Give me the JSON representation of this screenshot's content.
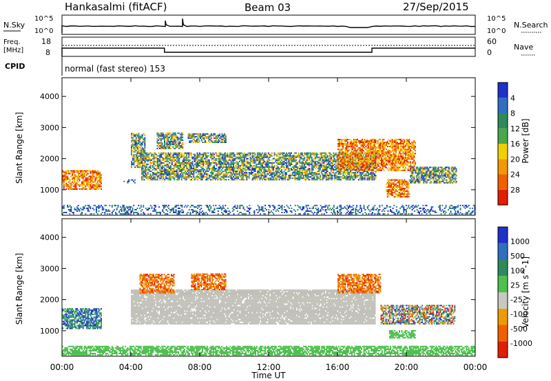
{
  "header": {
    "station": "Hankasalmi (fitACF)",
    "beam": "Beam 03",
    "date": "27/Sep/2015"
  },
  "noise_panel": {
    "left_label": "N.Sky",
    "right_label": "N.Search",
    "tick_top": "10^5",
    "tick_bottom": "10^0",
    "right_tick_top": "10^5",
    "right_tick_bottom": "10^0",
    "step_hours": [
      5.95,
      6.0,
      6.9,
      16.0,
      18.0
    ],
    "level": "low"
  },
  "freq_panel": {
    "left_label_1": "Freq.",
    "left_label_2": "[MHz]",
    "right_label": "Nave",
    "left_ticks": [
      "18",
      "8"
    ],
    "right_ticks": [
      "60",
      "0"
    ],
    "freq_mhz": 12.5,
    "nave_change_hours": [
      5.95,
      18.0
    ]
  },
  "cpid_panel": {
    "label": "CPID",
    "mode_text": "normal (fast stereo) 153"
  },
  "chart_data": [
    {
      "type": "heatmap",
      "title": "Power",
      "ylabel": "Slant Range [km]",
      "xlabel": "Time UT",
      "x_range_hours": [
        0,
        24
      ],
      "ylim_km": [
        180,
        4600
      ],
      "yticks": [
        1000,
        2000,
        3000,
        4000
      ],
      "xticks": [
        "00:00",
        "04:00",
        "08:00",
        "12:00",
        "16:00",
        "20:00",
        "00:00"
      ],
      "colorbar": {
        "label": "Power [dB]",
        "ticks": [
          "4",
          "8",
          "12",
          "16",
          "20",
          "24",
          "28"
        ],
        "colors": [
          "#2030c8",
          "#2f6fc0",
          "#2e8a5a",
          "#4aa84a",
          "#f0d000",
          "#f09a00",
          "#f06000",
          "#e02000"
        ]
      },
      "echo_regions": [
        {
          "t0": 0.0,
          "t1": 2.3,
          "r0": 1000,
          "r1": 1600,
          "level": "high"
        },
        {
          "t0": 3.5,
          "t1": 4.2,
          "r0": 1200,
          "r1": 1300,
          "level": "low"
        },
        {
          "t0": 4.0,
          "t1": 4.8,
          "r0": 1700,
          "r1": 2800,
          "level": "mid"
        },
        {
          "t0": 4.6,
          "t1": 18.2,
          "r0": 1300,
          "r1": 2200,
          "level": "mid"
        },
        {
          "t0": 5.5,
          "t1": 7.0,
          "r0": 2300,
          "r1": 2800,
          "level": "mid"
        },
        {
          "t0": 7.3,
          "t1": 9.5,
          "r0": 2500,
          "r1": 2800,
          "level": "mid"
        },
        {
          "t0": 16.0,
          "t1": 20.5,
          "r0": 1600,
          "r1": 2600,
          "level": "high"
        },
        {
          "t0": 18.8,
          "t1": 20.2,
          "r0": 750,
          "r1": 1300,
          "level": "high"
        },
        {
          "t0": 20.2,
          "t1": 22.9,
          "r0": 1200,
          "r1": 1700,
          "level": "mid"
        },
        {
          "t0": 0.0,
          "t1": 24.0,
          "r0": 200,
          "r1": 500,
          "level": "low"
        }
      ]
    },
    {
      "type": "heatmap",
      "title": "Velocity",
      "ylabel": "Slant Range [km]",
      "xlabel": "Time UT",
      "x_range_hours": [
        0,
        24
      ],
      "ylim_km": [
        180,
        4600
      ],
      "yticks": [
        1000,
        2000,
        3000,
        4000
      ],
      "xticks": [
        "00:00",
        "04:00",
        "08:00",
        "12:00",
        "16:00",
        "20:00",
        "00:00"
      ],
      "colorbar": {
        "label": "Velocity [m s^-1]",
        "ticks": [
          "1000",
          "500",
          "100",
          "25",
          "-25",
          "-100",
          "-500",
          "-1000"
        ],
        "colors": [
          "#2030c8",
          "#2f6fc0",
          "#2e8a5a",
          "#4fc04f",
          "#c8c8c0",
          "#f09a00",
          "#f06000",
          "#e02000"
        ]
      },
      "ground_scatter_color": "#c0c0b8",
      "echo_regions": [
        {
          "t0": 0.0,
          "t1": 2.3,
          "r0": 1050,
          "r1": 1700,
          "level": "pos"
        },
        {
          "t0": 4.0,
          "t1": 18.2,
          "r0": 1200,
          "r1": 2300,
          "level": "gs"
        },
        {
          "t0": 4.5,
          "t1": 6.5,
          "r0": 2200,
          "r1": 2800,
          "level": "neg"
        },
        {
          "t0": 7.5,
          "t1": 9.5,
          "r0": 2300,
          "r1": 2800,
          "level": "neg"
        },
        {
          "t0": 16.0,
          "t1": 18.5,
          "r0": 2200,
          "r1": 2800,
          "level": "neg"
        },
        {
          "t0": 18.5,
          "t1": 22.8,
          "r0": 1200,
          "r1": 1800,
          "level": "mix"
        },
        {
          "t0": 19.0,
          "t1": 20.5,
          "r0": 750,
          "r1": 1000,
          "level": "pos_green"
        },
        {
          "t0": 0.0,
          "t1": 24.0,
          "r0": 200,
          "r1": 500,
          "level": "pos_green"
        }
      ]
    }
  ],
  "x_axis": {
    "label": "Time UT",
    "ticks": [
      "00:00",
      "04:00",
      "08:00",
      "12:00",
      "16:00",
      "20:00",
      "00:00"
    ]
  }
}
